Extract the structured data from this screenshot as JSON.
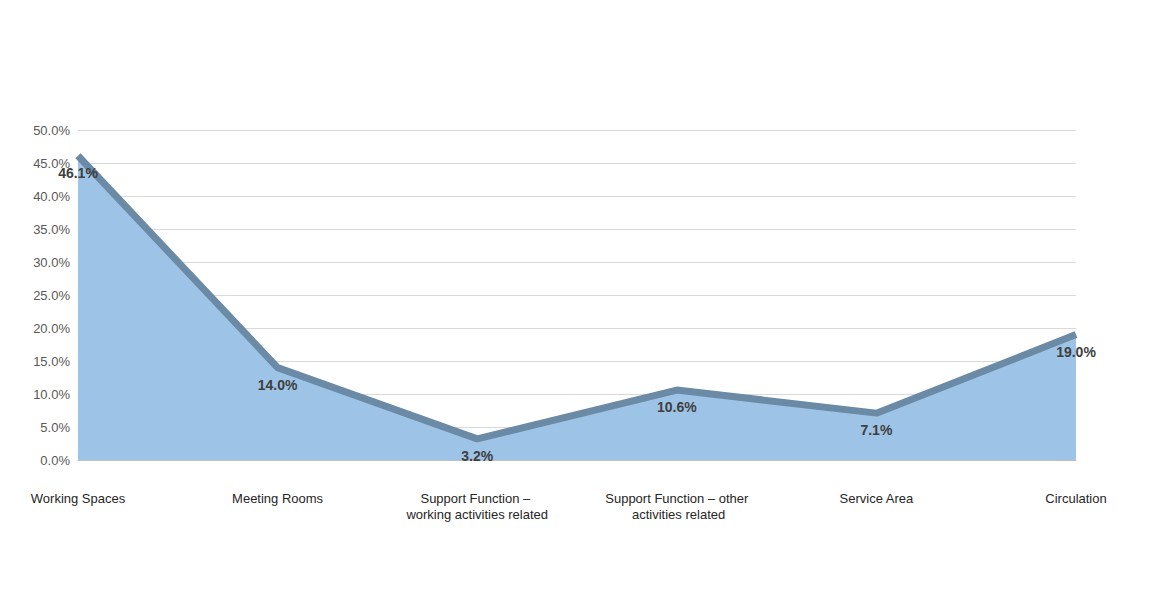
{
  "chart_data": {
    "type": "area",
    "categories": [
      "Working Spaces",
      "Meeting Rooms",
      "Support Function – working activities related",
      "Support Function – other activities related",
      "Service Area",
      "Circulation"
    ],
    "values": [
      46.1,
      14.0,
      3.2,
      10.6,
      7.1,
      19.0
    ],
    "value_labels": [
      "46.1%",
      "14.0%",
      "3.2%",
      "10.6%",
      "7.1%",
      "19.0%"
    ],
    "color": "#9dc3e6",
    "ylim": [
      0,
      50
    ],
    "yticks": [
      {
        "value": 0,
        "label": "0.0%"
      },
      {
        "value": 5,
        "label": "5.0%"
      },
      {
        "value": 10,
        "label": "10.0%"
      },
      {
        "value": 15,
        "label": "15.0%"
      },
      {
        "value": 20,
        "label": "20.0%"
      },
      {
        "value": 25,
        "label": "25.0%"
      },
      {
        "value": 30,
        "label": "30.0%"
      },
      {
        "value": 35,
        "label": "35.0%"
      },
      {
        "value": 40,
        "label": "40.0%"
      },
      {
        "value": 45,
        "label": "45.0%"
      },
      {
        "value": 50,
        "label": "50.0%"
      }
    ],
    "grid": true,
    "data_labels": true
  }
}
